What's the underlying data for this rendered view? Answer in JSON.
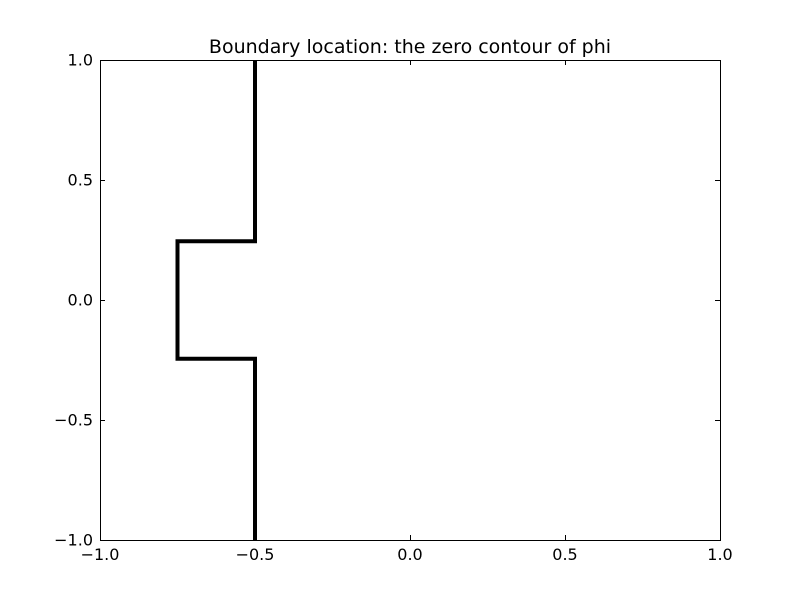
{
  "chart_data": {
    "type": "line",
    "title": "Boundary location: the zero contour of phi",
    "xlabel": "",
    "ylabel": "",
    "xlim": [
      -1.0,
      1.0
    ],
    "ylim": [
      -1.0,
      1.0
    ],
    "x_ticks": [
      -1.0,
      -0.5,
      0.0,
      0.5,
      1.0
    ],
    "y_ticks": [
      -1.0,
      -0.5,
      0.0,
      0.5,
      1.0
    ],
    "x_tick_labels": [
      "−1.0",
      "−0.5",
      "0.0",
      "0.5",
      "1.0"
    ],
    "y_tick_labels": [
      "−1.0",
      "−0.5",
      "0.0",
      "0.5",
      "1.0"
    ],
    "grid": false,
    "series": [
      {
        "color": "#000000",
        "x": [
          -0.5,
          -0.5,
          -0.75,
          -0.75,
          -0.5,
          -0.5
        ],
        "y": [
          -1.0,
          -0.245,
          -0.245,
          0.245,
          0.245,
          1.0
        ]
      }
    ]
  }
}
